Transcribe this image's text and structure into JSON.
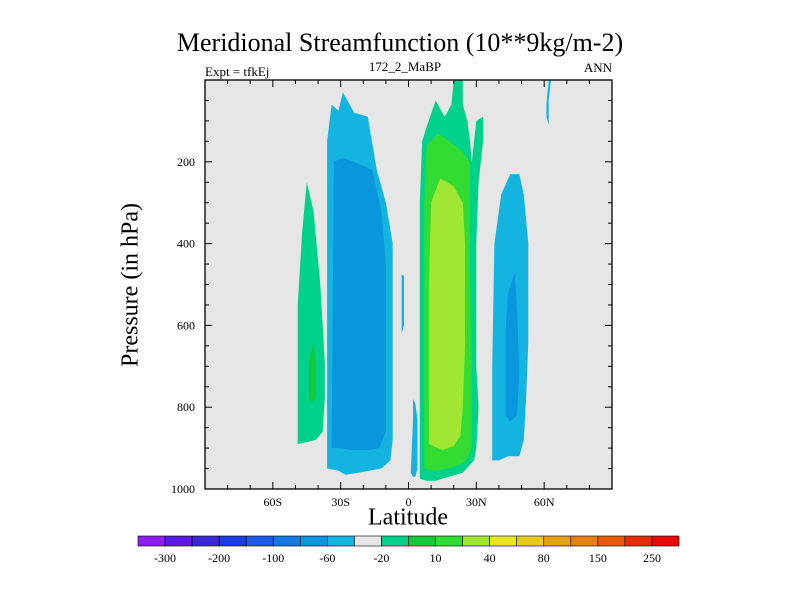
{
  "title": "Meridional Streamfunction (10**9kg/m-2)",
  "left_string": "Expt = tfkEj",
  "center_string": "172_2_MaBP",
  "right_string": "ANN",
  "chart_data": {
    "type": "heatmap",
    "title": "Meridional Streamfunction (10**9kg/m-2)",
    "xlabel": "Latitude",
    "ylabel": "Pressure (in hPa)",
    "xlim": [
      -90,
      90
    ],
    "ylim": [
      1000,
      0
    ],
    "x_ticks": [
      -60,
      -30,
      0,
      30,
      60
    ],
    "x_tick_labels": [
      "60S",
      "30S",
      "0",
      "30N",
      "60N"
    ],
    "y_ticks": [
      200,
      400,
      600,
      800,
      1000
    ],
    "y_tick_labels": [
      "200",
      "400",
      "600",
      "800",
      "1000"
    ],
    "background_color": "#e6e6e6",
    "levels": [
      -300,
      -200,
      -100,
      -60,
      -20,
      10,
      40,
      80,
      150,
      250
    ],
    "colorbar_labels": [
      "-300",
      "-200",
      "-100",
      "-60",
      "-20",
      "10",
      "40",
      "80",
      "150",
      "250"
    ],
    "colorbar_colors": [
      "#8c1ef0",
      "#5a19e6",
      "#3c28d2",
      "#1e3cdc",
      "#1e5ae6",
      "#1478e0",
      "#0a96dc",
      "#14b4e1",
      "#e6e6e6",
      "#00d28c",
      "#14c83c",
      "#32dc32",
      "#a0e632",
      "#e6e61e",
      "#e6c81e",
      "#e6a014",
      "#e68214",
      "#e65a0a",
      "#e62d0a",
      "#e60a0a"
    ],
    "regions": [
      {
        "name": "cell-15S",
        "color": "#14b4e1",
        "pts": [
          [
            -36,
            950
          ],
          [
            -36,
            150
          ],
          [
            -34,
            60
          ],
          [
            -31,
            75
          ],
          [
            -29,
            30
          ],
          [
            -24,
            80
          ],
          [
            -18,
            90
          ],
          [
            -14,
            220
          ],
          [
            -10,
            300
          ],
          [
            -7,
            400
          ],
          [
            -7,
            880
          ],
          [
            -8,
            930
          ],
          [
            -12,
            950
          ],
          [
            -17,
            955
          ],
          [
            -22,
            960
          ],
          [
            -28,
            965
          ],
          [
            -31,
            955
          ]
        ]
      },
      {
        "name": "cell-15S-core",
        "color": "#0a96dc",
        "pts": [
          [
            -34,
            900
          ],
          [
            -33,
            200
          ],
          [
            -29,
            190
          ],
          [
            -24,
            200
          ],
          [
            -16,
            220
          ],
          [
            -12,
            320
          ],
          [
            -10,
            450
          ],
          [
            -10,
            860
          ],
          [
            -13,
            900
          ],
          [
            -18,
            905
          ],
          [
            -25,
            905
          ],
          [
            -30,
            900
          ]
        ]
      },
      {
        "name": "cell-42S",
        "color": "#00d28c",
        "pts": [
          [
            -49,
            890
          ],
          [
            -49,
            550
          ],
          [
            -47,
            370
          ],
          [
            -45,
            250
          ],
          [
            -42,
            320
          ],
          [
            -39,
            500
          ],
          [
            -37,
            690
          ],
          [
            -37,
            780
          ],
          [
            -38,
            860
          ],
          [
            -41,
            880
          ],
          [
            -45,
            885
          ]
        ]
      },
      {
        "name": "cell-42S-core",
        "color": "#14c83c",
        "pts": [
          [
            -44,
            780
          ],
          [
            -44,
            690
          ],
          [
            -42,
            640
          ],
          [
            -41,
            690
          ],
          [
            -41,
            770
          ],
          [
            -42,
            790
          ]
        ]
      },
      {
        "name": "cell-48N",
        "color": "#14b4e1",
        "pts": [
          [
            37,
            930
          ],
          [
            37,
            700
          ],
          [
            38,
            400
          ],
          [
            41,
            280
          ],
          [
            45,
            230
          ],
          [
            49,
            230
          ],
          [
            51,
            280
          ],
          [
            53,
            400
          ],
          [
            53,
            640
          ],
          [
            52,
            780
          ],
          [
            51,
            880
          ],
          [
            49,
            920
          ],
          [
            44,
            920
          ],
          [
            40,
            930
          ]
        ]
      },
      {
        "name": "cell-48N-core",
        "color": "#0a96dc",
        "pts": [
          [
            43,
            820
          ],
          [
            43,
            610
          ],
          [
            44,
            520
          ],
          [
            47,
            470
          ],
          [
            48,
            560
          ],
          [
            49,
            720
          ],
          [
            48,
            820
          ],
          [
            45,
            835
          ]
        ]
      },
      {
        "name": "cell-60N-top",
        "color": "#14b4e1",
        "pts": [
          [
            61,
            60
          ],
          [
            62,
            0
          ],
          [
            63,
            0
          ],
          [
            62,
            50
          ],
          [
            62,
            110
          ],
          [
            61,
            90
          ]
        ]
      },
      {
        "name": "cell-15N",
        "color": "#00d28c",
        "pts": [
          [
            5,
            975
          ],
          [
            5,
            300
          ],
          [
            6,
            150
          ],
          [
            8,
            115
          ],
          [
            12,
            50
          ],
          [
            16,
            90
          ],
          [
            19,
            60
          ],
          [
            20,
            0
          ],
          [
            24,
            0
          ],
          [
            24,
            60
          ],
          [
            26,
            100
          ],
          [
            27,
            140
          ],
          [
            28,
            200
          ],
          [
            30,
            100
          ],
          [
            33,
            90
          ],
          [
            33,
            150
          ],
          [
            31,
            250
          ],
          [
            30,
            400
          ],
          [
            30,
            700
          ],
          [
            31,
            800
          ],
          [
            30,
            900
          ],
          [
            29,
            930
          ],
          [
            24,
            960
          ],
          [
            18,
            970
          ],
          [
            12,
            980
          ],
          [
            8,
            980
          ]
        ]
      },
      {
        "name": "cell-15N-core",
        "color": "#32dc32",
        "pts": [
          [
            7,
            950
          ],
          [
            7,
            300
          ],
          [
            8,
            160
          ],
          [
            13,
            130
          ],
          [
            18,
            150
          ],
          [
            23,
            170
          ],
          [
            27,
            200
          ],
          [
            27,
            400
          ],
          [
            28,
            700
          ],
          [
            28,
            900
          ],
          [
            25,
            935
          ],
          [
            18,
            950
          ],
          [
            12,
            955
          ]
        ]
      },
      {
        "name": "cell-15N-inner",
        "color": "#a0e632",
        "pts": [
          [
            9,
            890
          ],
          [
            9,
            500
          ],
          [
            10,
            300
          ],
          [
            14,
            240
          ],
          [
            20,
            260
          ],
          [
            24,
            300
          ],
          [
            25,
            400
          ],
          [
            25,
            650
          ],
          [
            24,
            800
          ],
          [
            23,
            870
          ],
          [
            20,
            895
          ],
          [
            15,
            905
          ]
        ]
      },
      {
        "name": "cell-0S",
        "color": "#14b4e1",
        "pts": [
          [
            1,
            960
          ],
          [
            2,
            830
          ],
          [
            2,
            780
          ],
          [
            3,
            790
          ],
          [
            4,
            830
          ],
          [
            4,
            950
          ],
          [
            3,
            970
          ],
          [
            2,
            970
          ]
        ]
      },
      {
        "name": "sliver-eq",
        "color": "#14b4e1",
        "pts": [
          [
            -3,
            475
          ],
          [
            -3,
            620
          ],
          [
            -2,
            600
          ],
          [
            -2,
            480
          ]
        ]
      }
    ]
  }
}
